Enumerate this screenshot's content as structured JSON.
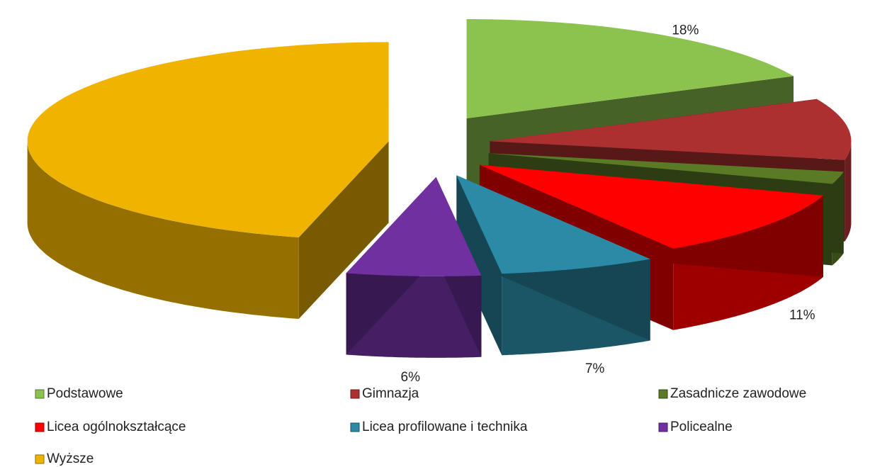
{
  "chart_data": {
    "type": "pie",
    "categories": [
      "Podstawowe",
      "Gimnazja",
      "Zasadnicze zawodowe",
      "Licea ogólnokształcące",
      "Licea profilowane i technika",
      "Policealne",
      "Wyższe"
    ],
    "values": [
      18,
      10,
      2,
      11,
      7,
      6,
      46
    ],
    "value_labels": [
      "18%",
      "10%",
      "2%",
      "11%",
      "7%",
      "6%",
      "46%"
    ],
    "colors": [
      "#8cc34e",
      "#ad3030",
      "#5a7a26",
      "#ff0000",
      "#2b8aa6",
      "#7030a0",
      "#f0b400"
    ],
    "legend": "bottom"
  }
}
